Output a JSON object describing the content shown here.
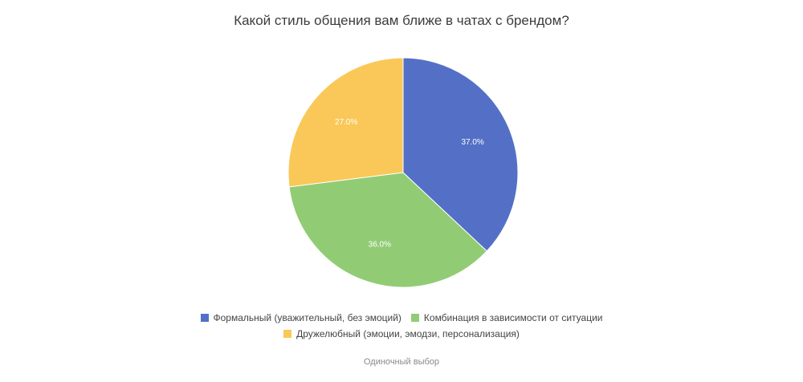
{
  "chart_data": {
    "type": "pie",
    "title": "Какой стиль общения вам ближе в чатах с брендом?",
    "categories": [
      "Формальный (уважительный, без эмоций)",
      "Комбинация в зависимости от ситуации",
      "Дружелюбный (эмоции, эмодзи, персонализация)"
    ],
    "values": [
      37.0,
      36.0,
      27.0
    ],
    "value_labels": [
      "37.0%",
      "36.0%",
      "27.0%"
    ],
    "colors": [
      "#5470C6",
      "#91CC75",
      "#FAC858"
    ],
    "legend_position": "bottom"
  },
  "footer": {
    "text": "Одиночный выбор"
  }
}
